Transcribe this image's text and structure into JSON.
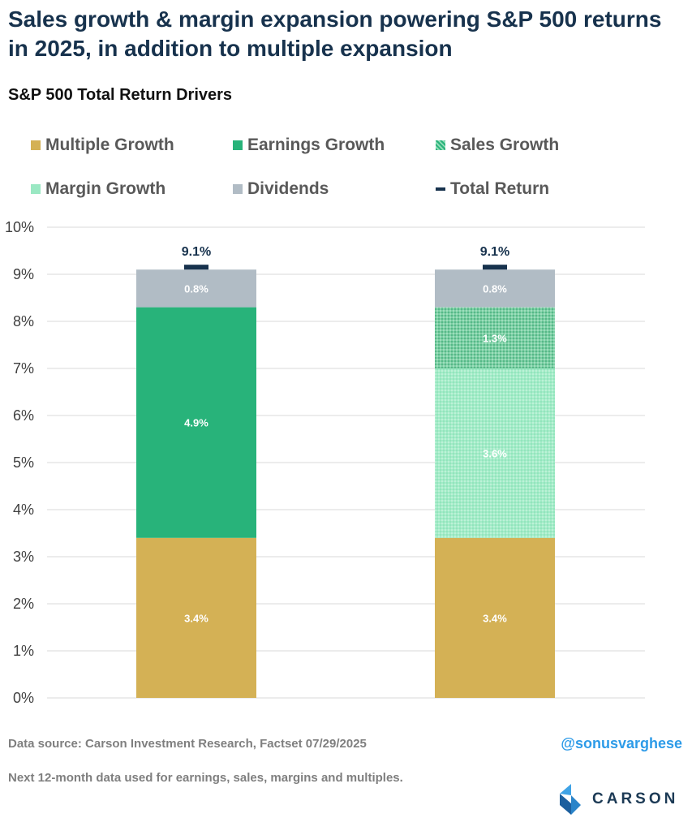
{
  "title": "Sales growth & margin expansion powering S&P 500 returns in 2025, in addition to multiple expansion",
  "chart_data": {
    "type": "bar",
    "stacked": true,
    "title": "S&P 500 Total Return Drivers",
    "categories": [
      "",
      ""
    ],
    "ylim": [
      0,
      10
    ],
    "yticks": [
      "0%",
      "1%",
      "2%",
      "3%",
      "4%",
      "5%",
      "6%",
      "7%",
      "8%",
      "9%",
      "10%"
    ],
    "grid": true,
    "legend_position": "top",
    "legend": [
      {
        "name": "Multiple Growth",
        "color": "#d4b155",
        "marker": "square"
      },
      {
        "name": "Earnings Growth",
        "color": "#28b37a",
        "marker": "square"
      },
      {
        "name": "Sales Growth",
        "color": "#4fbf8a",
        "marker": "square-dotted"
      },
      {
        "name": "Margin Growth",
        "color": "#9ae8c3",
        "marker": "square-dotted"
      },
      {
        "name": "Dividends",
        "color": "#b1bcc5",
        "marker": "square"
      },
      {
        "name": "Total Return",
        "color": "#17324d",
        "marker": "dash"
      }
    ],
    "bars": [
      {
        "segments": [
          {
            "series": "Multiple Growth",
            "value": 3.4,
            "label": "3.4%"
          },
          {
            "series": "Earnings Growth",
            "value": 4.9,
            "label": "4.9%"
          },
          {
            "series": "Dividends",
            "value": 0.8,
            "label": "0.8%"
          }
        ],
        "total": 9.1,
        "total_label": "9.1%"
      },
      {
        "segments": [
          {
            "series": "Multiple Growth",
            "value": 3.4,
            "label": "3.4%"
          },
          {
            "series": "Margin Growth",
            "value": 3.6,
            "label": "3.6%"
          },
          {
            "series": "Sales Growth",
            "value": 1.3,
            "label": "1.3%"
          },
          {
            "series": "Dividends",
            "value": 0.8,
            "label": "0.8%"
          }
        ],
        "total": 9.1,
        "total_label": "9.1%"
      }
    ]
  },
  "footer": {
    "source": "Data source: Carson Investment Research, Factset    07/29/2025",
    "note": "Next 12-month data used for earnings, sales, margins and multiples.",
    "handle": "@sonusvarghese",
    "logo_text": "CARSON"
  }
}
